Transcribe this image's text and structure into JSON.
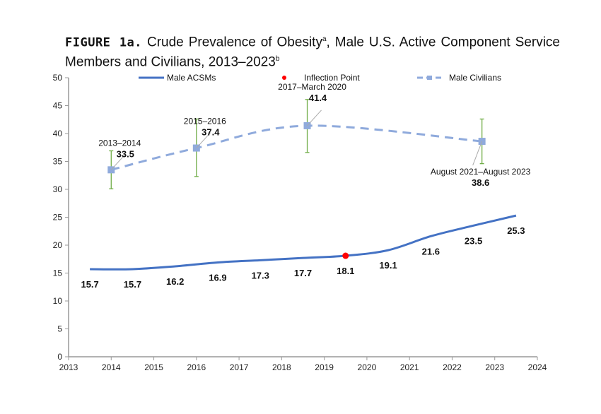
{
  "title": {
    "figure_label": "FIGURE 1a.",
    "text": "Crude Prevalence of Obesity",
    "sup_a": "a",
    "text2": ", Male U.S. Active Component Service Members and Civilians, 2013–2023",
    "sup_b": "b"
  },
  "chart_data": {
    "type": "line",
    "xlim": [
      2013,
      2024
    ],
    "ylim": [
      0,
      50
    ],
    "xticks": [
      2013,
      2014,
      2015,
      2016,
      2017,
      2018,
      2019,
      2020,
      2021,
      2022,
      2023,
      2024
    ],
    "yticks": [
      0,
      5,
      10,
      15,
      20,
      25,
      30,
      35,
      40,
      45,
      50
    ],
    "grid": false,
    "legend_placement": "top",
    "legend": [
      "Male ACSMs",
      "Inflection Point",
      "Male Civilians"
    ],
    "series": [
      {
        "name": "Male ACSMs",
        "color": "#4472C4",
        "style": "solid",
        "x": [
          2013.5,
          2014.5,
          2015.5,
          2016.5,
          2017.5,
          2018.5,
          2019.5,
          2020.5,
          2021.5,
          2022.5,
          2023.5
        ],
        "y": [
          15.7,
          15.7,
          16.2,
          16.9,
          17.3,
          17.7,
          18.1,
          19.1,
          21.6,
          23.5,
          25.3
        ],
        "labels": [
          "15.7",
          "15.7",
          "16.2",
          "16.9",
          "17.3",
          "17.7",
          "18.1",
          "19.1",
          "21.6",
          "23.5",
          "25.3"
        ]
      },
      {
        "name": "Inflection Point",
        "color": "#FF0000",
        "x": [
          2019.5
        ],
        "y": [
          18.1
        ]
      },
      {
        "name": "Male Civilians",
        "color": "#8FAADC",
        "style": "dashed",
        "marker": "square",
        "x": [
          2014.0,
          2016.0,
          2018.6,
          2022.7
        ],
        "y": [
          33.5,
          37.4,
          41.4,
          38.6
        ],
        "labels": [
          "33.5",
          "37.4",
          "41.4",
          "38.6"
        ],
        "period_labels": [
          "2013–2014",
          "2015–2016",
          "2017–March 2020",
          "August 2021–August 2023"
        ],
        "ci_low": [
          30.1,
          32.3,
          36.6,
          34.6
        ],
        "ci_high": [
          36.9,
          42.6,
          46.1,
          42.6
        ],
        "ci_color": "#70AD47"
      }
    ]
  }
}
